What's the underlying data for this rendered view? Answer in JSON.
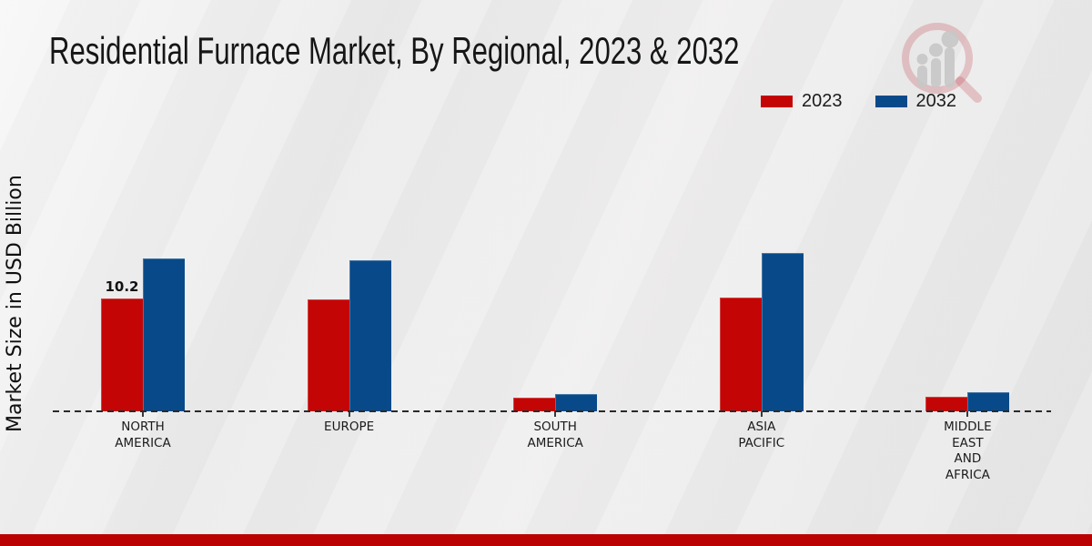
{
  "page_title": "Residential Furnace Market, By Regional, 2023 & 2032",
  "footer": {
    "bar_color": "#bb0202"
  },
  "logo": {
    "name": "market-research-magnifier-logo"
  },
  "chart_data": {
    "type": "bar",
    "title": "Residential Furnace Market, By Regional, 2023 & 2032",
    "xlabel": "",
    "ylabel": "Market Size in USD Billion",
    "categories": [
      "NORTH AMERICA",
      "EUROPE",
      "SOUTH AMERICA",
      "ASIA PACIFIC",
      "MIDDLE EAST AND AFRICA"
    ],
    "category_label_lines": [
      [
        "NORTH",
        "AMERICA"
      ],
      [
        "EUROPE"
      ],
      [
        "SOUTH",
        "AMERICA"
      ],
      [
        "ASIA",
        "PACIFIC"
      ],
      [
        "MIDDLE",
        "EAST",
        "AND",
        "AFRICA"
      ]
    ],
    "series": [
      {
        "name": "2023",
        "color": "#c40505",
        "values": [
          10.2,
          10.15,
          1.25,
          10.3,
          1.35
        ],
        "data_labels": [
          "10.2",
          "",
          "",
          "",
          ""
        ]
      },
      {
        "name": "2032",
        "color": "#084a89",
        "values": [
          13.85,
          13.65,
          1.6,
          14.3,
          1.75
        ],
        "data_labels": [
          "",
          "",
          "",
          "",
          ""
        ]
      }
    ],
    "ylim": [
      0,
      15
    ],
    "gridlines": false,
    "legend_position": "top-right",
    "baseline_style": "dashed",
    "axis_tick_color": "#3a3a3a"
  }
}
